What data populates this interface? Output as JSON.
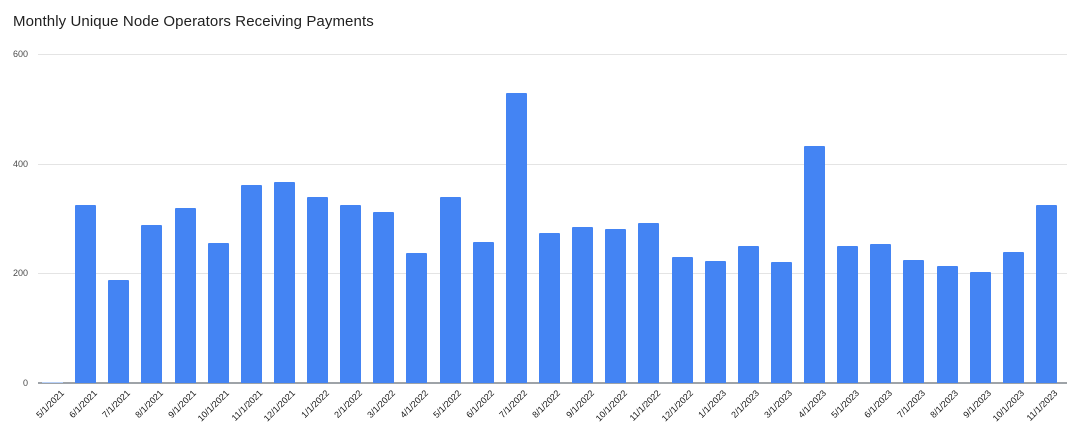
{
  "title": "Monthly Unique Node Operators Receiving Payments",
  "colors": {
    "bar": "#4484f3",
    "bar_antialiased_tiny": "#b8d1f9",
    "gridline": "#e4e4e4",
    "axis_line": "#9ea3a8",
    "title_text": "#1f1f1f",
    "tick_text": "#171717"
  },
  "chart_data": {
    "type": "bar",
    "title": "Monthly Unique Node Operators Receiving Payments",
    "xlabel": "",
    "ylabel": "",
    "ylim": [
      0,
      600
    ],
    "yticks": [
      0,
      200,
      400,
      600
    ],
    "grid": true,
    "legend": false,
    "x_tick_rotation_deg": 45,
    "categories": [
      "5/1/2021",
      "6/1/2021",
      "7/1/2021",
      "8/1/2021",
      "9/1/2021",
      "10/1/2021",
      "11/1/2021",
      "12/1/2021",
      "1/1/2022",
      "2/1/2022",
      "3/1/2022",
      "4/1/2022",
      "5/1/2022",
      "6/1/2022",
      "7/1/2022",
      "8/1/2022",
      "9/1/2022",
      "10/1/2022",
      "11/1/2022",
      "12/1/2022",
      "1/1/2023",
      "2/1/2023",
      "3/1/2023",
      "4/1/2023",
      "5/1/2023",
      "6/1/2023",
      "7/1/2023",
      "8/1/2023",
      "9/1/2023",
      "10/1/2023",
      "11/1/2023"
    ],
    "values": [
      2,
      324,
      188,
      289,
      320,
      256,
      362,
      366,
      339,
      325,
      311,
      237,
      339,
      258,
      529,
      274,
      285,
      281,
      292,
      229,
      222,
      249,
      221,
      432,
      249,
      254,
      225,
      213,
      203,
      238,
      324
    ]
  }
}
